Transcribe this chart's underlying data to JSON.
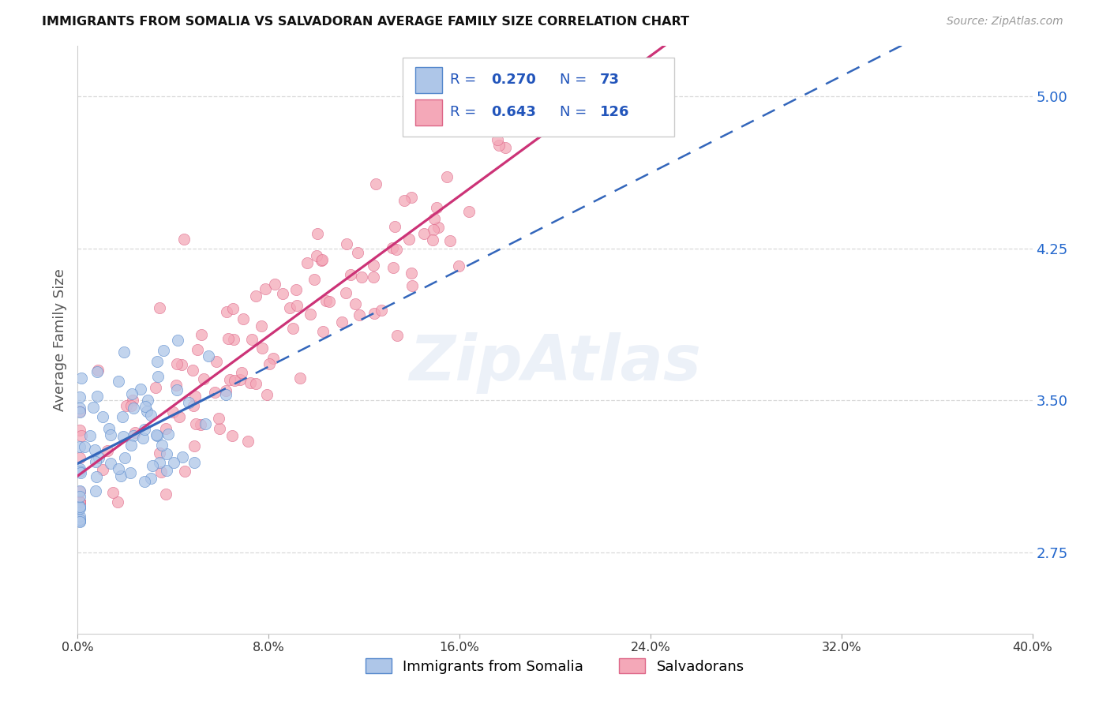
{
  "title": "IMMIGRANTS FROM SOMALIA VS SALVADORAN AVERAGE FAMILY SIZE CORRELATION CHART",
  "source_text": "Source: ZipAtlas.com",
  "ylabel": "Average Family Size",
  "yticks": [
    2.75,
    3.5,
    4.25,
    5.0
  ],
  "xlim": [
    0.0,
    0.4
  ],
  "ylim": [
    2.35,
    5.25
  ],
  "watermark_text": "ZipAtlas",
  "legend_somalia_R": "0.270",
  "legend_somalia_N": "73",
  "legend_salvadoran_R": "0.643",
  "legend_salvadoran_N": "126",
  "somalia_dot_fill": "#aec6e8",
  "somalia_dot_edge": "#5588cc",
  "salvadoran_dot_fill": "#f4a8b8",
  "salvadoran_dot_edge": "#dd6688",
  "somalia_line_color": "#3366bb",
  "salvadoran_line_color": "#cc3377",
  "background_color": "#ffffff",
  "grid_color": "#d8d8d8",
  "title_color": "#111111",
  "ylabel_color": "#555555",
  "yaxis_tick_color": "#2266cc",
  "source_color": "#999999",
  "legend_text_color": "#2255bb",
  "xtick_labels": [
    "0.0%",
    "8.0%",
    "16.0%",
    "24.0%",
    "32.0%",
    "40.0%"
  ],
  "xtick_positions": [
    0.0,
    0.08,
    0.16,
    0.24,
    0.32,
    0.4
  ]
}
